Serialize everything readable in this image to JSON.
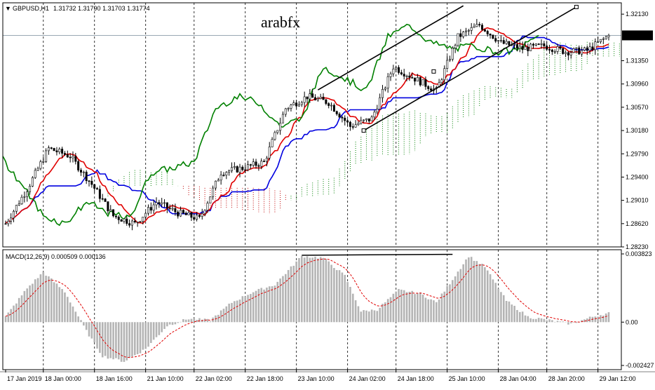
{
  "header": {
    "symbol": "GBPUSD,H1",
    "ohlc": "1.31732 1.31790 1.31703 1.31774",
    "watermark": "arabfx"
  },
  "price_axis": {
    "ticks": [
      "1.32130",
      "1.31350",
      "1.30960",
      "1.30570",
      "1.30180",
      "1.29790",
      "1.29400",
      "1.29010",
      "1.28620",
      "1.28230"
    ],
    "current": "1.31774"
  },
  "macd_panel": {
    "title": "MACD(12,26,9) 0.000509 0.000136",
    "ticks": [
      "0.003823",
      "0.00",
      "-0.002427"
    ]
  },
  "time_axis": {
    "labels": [
      "17 Jan 2019",
      "18 Jan 00:00",
      "18 Jan 16:00",
      "21 Jan 10:00",
      "22 Jan 02:00",
      "22 Jan 18:00",
      "23 Jan 10:00",
      "24 Jan 02:00",
      "24 Jan 18:00",
      "25 Jan 10:00",
      "28 Jan 04:00",
      "28 Jan 20:00",
      "29 Jan 12:00"
    ]
  },
  "colors": {
    "bull": "#ffffff",
    "bear": "#000000",
    "tenkan": "#e00000",
    "kijun": "#0000e0",
    "chikou": "#008000",
    "cloud_bull": "#008000",
    "cloud_bear": "#c00000",
    "macd_hist": "#b4b4b4",
    "macd_signal": "#e00000"
  },
  "chart_data": [
    {
      "type": "candlestick",
      "title": "GBPUSD,H1",
      "ylim": [
        1.2823,
        1.3232
      ],
      "indicators": [
        "Ichimoku Kinko Hyo",
        "Trend channel"
      ],
      "current_price": 1.31774,
      "last_bar": {
        "open": 1.31732,
        "high": 1.3179,
        "low": 1.31703,
        "close": 1.31774
      },
      "anchors": [
        {
          "t": 0,
          "p": 1.2862
        },
        {
          "t": 8,
          "p": 1.292
        },
        {
          "t": 16,
          "p": 1.2988
        },
        {
          "t": 24,
          "p": 1.2975
        },
        {
          "t": 32,
          "p": 1.2928
        },
        {
          "t": 40,
          "p": 1.2875
        },
        {
          "t": 48,
          "p": 1.2862
        },
        {
          "t": 56,
          "p": 1.2898
        },
        {
          "t": 64,
          "p": 1.288
        },
        {
          "t": 72,
          "p": 1.287
        },
        {
          "t": 80,
          "p": 1.2948
        },
        {
          "t": 88,
          "p": 1.2955
        },
        {
          "t": 96,
          "p": 1.2965
        },
        {
          "t": 104,
          "p": 1.3055
        },
        {
          "t": 112,
          "p": 1.3075
        },
        {
          "t": 120,
          "p": 1.3065
        },
        {
          "t": 128,
          "p": 1.3025
        },
        {
          "t": 136,
          "p": 1.3038
        },
        {
          "t": 144,
          "p": 1.3125
        },
        {
          "t": 152,
          "p": 1.3105
        },
        {
          "t": 160,
          "p": 1.3085
        },
        {
          "t": 168,
          "p": 1.3175
        },
        {
          "t": 176,
          "p": 1.3195
        },
        {
          "t": 184,
          "p": 1.3165
        },
        {
          "t": 192,
          "p": 1.3155
        },
        {
          "t": 200,
          "p": 1.316
        },
        {
          "t": 208,
          "p": 1.315
        },
        {
          "t": 216,
          "p": 1.3152
        },
        {
          "t": 224,
          "p": 1.3177
        }
      ],
      "channel": {
        "upper": [
          [
            116,
            1.3086
          ],
          [
            170,
            1.3227
          ]
        ],
        "lower": [
          [
            133,
            1.3018
          ],
          [
            212,
            1.3225
          ]
        ]
      }
    },
    {
      "type": "bar",
      "title": "MACD(12,26,9)",
      "ylim": [
        -0.002427,
        0.003823
      ],
      "last_values": {
        "macd": 0.000509,
        "signal": 0.000136
      },
      "anchors": [
        {
          "t": 0,
          "v": 0.0003
        },
        {
          "t": 8,
          "v": 0.0019
        },
        {
          "t": 14,
          "v": 0.0028
        },
        {
          "t": 22,
          "v": 0.0017
        },
        {
          "t": 30,
          "v": -0.0005
        },
        {
          "t": 36,
          "v": -0.0019
        },
        {
          "t": 44,
          "v": -0.0022
        },
        {
          "t": 52,
          "v": -0.0015
        },
        {
          "t": 60,
          "v": -0.0002
        },
        {
          "t": 68,
          "v": 0.0002
        },
        {
          "t": 76,
          "v": 0.0001
        },
        {
          "t": 84,
          "v": 0.0011
        },
        {
          "t": 92,
          "v": 0.0017
        },
        {
          "t": 100,
          "v": 0.0021
        },
        {
          "t": 110,
          "v": 0.0037
        },
        {
          "t": 118,
          "v": 0.0036
        },
        {
          "t": 126,
          "v": 0.0026
        },
        {
          "t": 132,
          "v": 0.0006
        },
        {
          "t": 138,
          "v": 0.0007
        },
        {
          "t": 146,
          "v": 0.0018
        },
        {
          "t": 154,
          "v": 0.0016
        },
        {
          "t": 160,
          "v": 0.0011
        },
        {
          "t": 166,
          "v": 0.0024
        },
        {
          "t": 172,
          "v": 0.0037
        },
        {
          "t": 178,
          "v": 0.0031
        },
        {
          "t": 186,
          "v": 0.0012
        },
        {
          "t": 194,
          "v": 0.0003
        },
        {
          "t": 202,
          "v": 0.0001
        },
        {
          "t": 210,
          "v": -0.0001
        },
        {
          "t": 218,
          "v": 0.0003
        },
        {
          "t": 224,
          "v": 0.000509
        }
      ],
      "annotation_line": {
        "from": [
          110,
          0.00375
        ],
        "to": [
          166,
          0.0038
        ]
      }
    }
  ]
}
